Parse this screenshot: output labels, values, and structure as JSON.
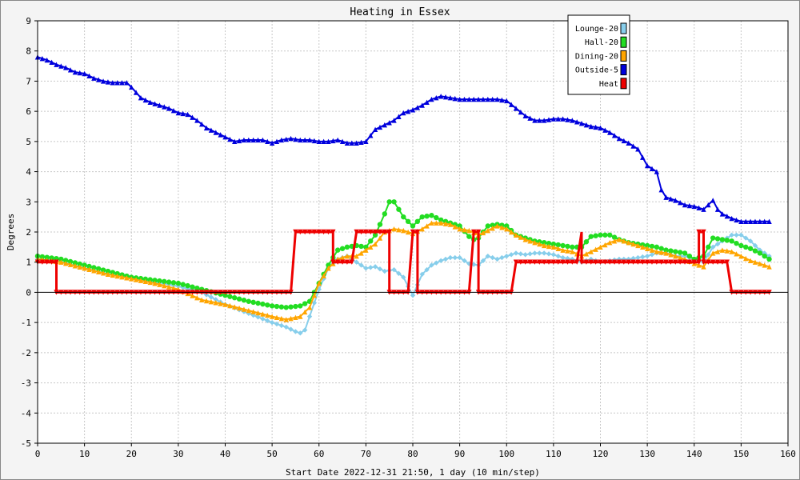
{
  "chart_data": {
    "type": "line",
    "title": "Heating in Essex",
    "xlabel": "Start Date 2022-12-31 21:50, 1 day (10 min/step)",
    "ylabel": "Degrees",
    "xlim": [
      0,
      160
    ],
    "ylim": [
      -5,
      9
    ],
    "x_ticks": [
      0,
      10,
      20,
      30,
      40,
      50,
      60,
      70,
      80,
      90,
      100,
      110,
      120,
      130,
      140,
      150,
      160
    ],
    "y_ticks": [
      -5,
      -4,
      -3,
      -2,
      -1,
      0,
      1,
      2,
      3,
      4,
      5,
      6,
      7,
      8,
      9
    ],
    "grid": true,
    "legend_position": "top-right",
    "series": [
      {
        "name": "Lounge-20",
        "color": "#87ceeb",
        "marker": "diamond",
        "points": [
          [
            0,
            1.1
          ],
          [
            5,
            1.0
          ],
          [
            10,
            0.8
          ],
          [
            15,
            0.6
          ],
          [
            20,
            0.5
          ],
          [
            25,
            0.35
          ],
          [
            30,
            0.2
          ],
          [
            35,
            0.0
          ],
          [
            40,
            -0.4
          ],
          [
            45,
            -0.7
          ],
          [
            50,
            -1.0
          ],
          [
            53,
            -1.15
          ],
          [
            55,
            -1.3
          ],
          [
            56,
            -1.35
          ],
          [
            57,
            -1.25
          ],
          [
            58,
            -0.8
          ],
          [
            60,
            0.1
          ],
          [
            62,
            0.8
          ],
          [
            64,
            1.1
          ],
          [
            66,
            1.2
          ],
          [
            68,
            1.0
          ],
          [
            70,
            0.8
          ],
          [
            72,
            0.85
          ],
          [
            74,
            0.7
          ],
          [
            76,
            0.75
          ],
          [
            78,
            0.5
          ],
          [
            80,
            -0.1
          ],
          [
            82,
            0.6
          ],
          [
            84,
            0.9
          ],
          [
            86,
            1.05
          ],
          [
            88,
            1.15
          ],
          [
            90,
            1.15
          ],
          [
            92,
            0.95
          ],
          [
            94,
            0.9
          ],
          [
            96,
            1.2
          ],
          [
            98,
            1.1
          ],
          [
            100,
            1.2
          ],
          [
            102,
            1.3
          ],
          [
            104,
            1.25
          ],
          [
            106,
            1.3
          ],
          [
            108,
            1.3
          ],
          [
            110,
            1.25
          ],
          [
            112,
            1.15
          ],
          [
            114,
            1.1
          ],
          [
            116,
            1.0
          ],
          [
            118,
            1.1
          ],
          [
            120,
            1.0
          ],
          [
            122,
            1.05
          ],
          [
            124,
            1.1
          ],
          [
            126,
            1.1
          ],
          [
            128,
            1.15
          ],
          [
            130,
            1.2
          ],
          [
            132,
            1.3
          ],
          [
            134,
            1.3
          ],
          [
            136,
            1.2
          ],
          [
            138,
            1.2
          ],
          [
            140,
            1.1
          ],
          [
            142,
            1.0
          ],
          [
            144,
            1.5
          ],
          [
            146,
            1.7
          ],
          [
            148,
            1.9
          ],
          [
            150,
            1.9
          ],
          [
            152,
            1.7
          ],
          [
            154,
            1.4
          ],
          [
            156,
            1.2
          ]
        ]
      },
      {
        "name": "Hall-20",
        "color": "#22dd22",
        "marker": "circle",
        "points": [
          [
            0,
            1.2
          ],
          [
            5,
            1.1
          ],
          [
            10,
            0.9
          ],
          [
            15,
            0.7
          ],
          [
            20,
            0.5
          ],
          [
            25,
            0.4
          ],
          [
            30,
            0.3
          ],
          [
            35,
            0.1
          ],
          [
            40,
            -0.1
          ],
          [
            45,
            -0.3
          ],
          [
            50,
            -0.45
          ],
          [
            53,
            -0.5
          ],
          [
            56,
            -0.45
          ],
          [
            58,
            -0.3
          ],
          [
            60,
            0.3
          ],
          [
            62,
            0.9
          ],
          [
            64,
            1.4
          ],
          [
            66,
            1.5
          ],
          [
            68,
            1.55
          ],
          [
            70,
            1.5
          ],
          [
            72,
            1.9
          ],
          [
            74,
            2.6
          ],
          [
            75,
            3.0
          ],
          [
            76,
            3.0
          ],
          [
            78,
            2.5
          ],
          [
            80,
            2.2
          ],
          [
            82,
            2.5
          ],
          [
            84,
            2.55
          ],
          [
            86,
            2.4
          ],
          [
            88,
            2.3
          ],
          [
            90,
            2.2
          ],
          [
            92,
            1.85
          ],
          [
            93,
            1.75
          ],
          [
            94,
            1.8
          ],
          [
            96,
            2.2
          ],
          [
            98,
            2.25
          ],
          [
            100,
            2.2
          ],
          [
            102,
            1.9
          ],
          [
            104,
            1.8
          ],
          [
            106,
            1.7
          ],
          [
            108,
            1.65
          ],
          [
            110,
            1.6
          ],
          [
            112,
            1.55
          ],
          [
            114,
            1.5
          ],
          [
            116,
            1.5
          ],
          [
            118,
            1.85
          ],
          [
            120,
            1.9
          ],
          [
            122,
            1.9
          ],
          [
            124,
            1.75
          ],
          [
            126,
            1.65
          ],
          [
            128,
            1.6
          ],
          [
            130,
            1.55
          ],
          [
            132,
            1.5
          ],
          [
            134,
            1.4
          ],
          [
            136,
            1.35
          ],
          [
            138,
            1.3
          ],
          [
            140,
            1.1
          ],
          [
            142,
            1.2
          ],
          [
            144,
            1.8
          ],
          [
            146,
            1.75
          ],
          [
            148,
            1.7
          ],
          [
            150,
            1.55
          ],
          [
            152,
            1.45
          ],
          [
            154,
            1.3
          ],
          [
            156,
            1.1
          ]
        ]
      },
      {
        "name": "Dining-20",
        "color": "#ffa500",
        "marker": "triangle",
        "points": [
          [
            0,
            1.1
          ],
          [
            5,
            1.0
          ],
          [
            10,
            0.8
          ],
          [
            15,
            0.6
          ],
          [
            20,
            0.45
          ],
          [
            25,
            0.3
          ],
          [
            30,
            0.1
          ],
          [
            35,
            -0.25
          ],
          [
            40,
            -0.4
          ],
          [
            45,
            -0.6
          ],
          [
            50,
            -0.8
          ],
          [
            53,
            -0.9
          ],
          [
            56,
            -0.8
          ],
          [
            58,
            -0.5
          ],
          [
            60,
            0.3
          ],
          [
            62,
            0.8
          ],
          [
            64,
            1.1
          ],
          [
            66,
            1.2
          ],
          [
            68,
            1.2
          ],
          [
            70,
            1.4
          ],
          [
            72,
            1.6
          ],
          [
            74,
            2.0
          ],
          [
            76,
            2.1
          ],
          [
            78,
            2.05
          ],
          [
            80,
            1.95
          ],
          [
            82,
            2.1
          ],
          [
            84,
            2.3
          ],
          [
            86,
            2.3
          ],
          [
            88,
            2.25
          ],
          [
            90,
            2.1
          ],
          [
            92,
            2.05
          ],
          [
            94,
            1.9
          ],
          [
            96,
            2.05
          ],
          [
            98,
            2.2
          ],
          [
            100,
            2.1
          ],
          [
            102,
            1.9
          ],
          [
            104,
            1.75
          ],
          [
            106,
            1.65
          ],
          [
            108,
            1.55
          ],
          [
            110,
            1.5
          ],
          [
            112,
            1.4
          ],
          [
            114,
            1.35
          ],
          [
            116,
            1.2
          ],
          [
            118,
            1.35
          ],
          [
            120,
            1.5
          ],
          [
            122,
            1.65
          ],
          [
            124,
            1.75
          ],
          [
            126,
            1.65
          ],
          [
            128,
            1.55
          ],
          [
            130,
            1.45
          ],
          [
            132,
            1.35
          ],
          [
            134,
            1.3
          ],
          [
            136,
            1.2
          ],
          [
            138,
            1.1
          ],
          [
            140,
            0.95
          ],
          [
            142,
            0.85
          ],
          [
            144,
            1.3
          ],
          [
            146,
            1.4
          ],
          [
            148,
            1.35
          ],
          [
            150,
            1.2
          ],
          [
            152,
            1.05
          ],
          [
            154,
            0.95
          ],
          [
            156,
            0.85
          ]
        ]
      },
      {
        "name": "Outside-5",
        "color": "#0000dd",
        "marker": "triangle",
        "points": [
          [
            0,
            7.8
          ],
          [
            2,
            7.7
          ],
          [
            4,
            7.55
          ],
          [
            6,
            7.45
          ],
          [
            8,
            7.3
          ],
          [
            10,
            7.25
          ],
          [
            12,
            7.1
          ],
          [
            14,
            7.0
          ],
          [
            16,
            6.95
          ],
          [
            18,
            6.95
          ],
          [
            19,
            6.95
          ],
          [
            20,
            6.8
          ],
          [
            22,
            6.45
          ],
          [
            24,
            6.3
          ],
          [
            26,
            6.2
          ],
          [
            28,
            6.1
          ],
          [
            30,
            5.95
          ],
          [
            32,
            5.9
          ],
          [
            34,
            5.7
          ],
          [
            36,
            5.45
          ],
          [
            38,
            5.3
          ],
          [
            40,
            5.15
          ],
          [
            42,
            5.0
          ],
          [
            44,
            5.05
          ],
          [
            46,
            5.05
          ],
          [
            48,
            5.05
          ],
          [
            50,
            4.95
          ],
          [
            52,
            5.05
          ],
          [
            54,
            5.1
          ],
          [
            56,
            5.05
          ],
          [
            58,
            5.05
          ],
          [
            60,
            5.0
          ],
          [
            62,
            5.0
          ],
          [
            64,
            5.05
          ],
          [
            66,
            4.95
          ],
          [
            68,
            4.95
          ],
          [
            70,
            5.0
          ],
          [
            72,
            5.4
          ],
          [
            74,
            5.55
          ],
          [
            76,
            5.7
          ],
          [
            78,
            5.95
          ],
          [
            80,
            6.05
          ],
          [
            82,
            6.2
          ],
          [
            84,
            6.4
          ],
          [
            86,
            6.5
          ],
          [
            88,
            6.45
          ],
          [
            90,
            6.4
          ],
          [
            92,
            6.4
          ],
          [
            94,
            6.4
          ],
          [
            96,
            6.4
          ],
          [
            98,
            6.4
          ],
          [
            100,
            6.35
          ],
          [
            102,
            6.1
          ],
          [
            104,
            5.85
          ],
          [
            106,
            5.7
          ],
          [
            108,
            5.7
          ],
          [
            110,
            5.75
          ],
          [
            112,
            5.75
          ],
          [
            114,
            5.7
          ],
          [
            116,
            5.6
          ],
          [
            118,
            5.5
          ],
          [
            120,
            5.45
          ],
          [
            122,
            5.3
          ],
          [
            124,
            5.1
          ],
          [
            126,
            4.95
          ],
          [
            128,
            4.75
          ],
          [
            130,
            4.2
          ],
          [
            132,
            4.0
          ],
          [
            133,
            3.4
          ],
          [
            134,
            3.15
          ],
          [
            136,
            3.05
          ],
          [
            138,
            2.9
          ],
          [
            140,
            2.85
          ],
          [
            142,
            2.75
          ],
          [
            144,
            3.05
          ],
          [
            145,
            2.75
          ],
          [
            146,
            2.6
          ],
          [
            148,
            2.45
          ],
          [
            150,
            2.35
          ],
          [
            152,
            2.35
          ],
          [
            154,
            2.35
          ],
          [
            156,
            2.35
          ]
        ]
      },
      {
        "name": "Heat",
        "color": "#ee0000",
        "marker": "triangle-down",
        "points": [
          [
            0,
            1
          ],
          [
            4,
            1
          ],
          [
            4,
            0
          ],
          [
            54,
            0
          ],
          [
            55,
            2
          ],
          [
            63,
            2
          ],
          [
            63,
            1
          ],
          [
            67,
            1
          ],
          [
            68,
            2
          ],
          [
            75,
            2
          ],
          [
            75,
            0
          ],
          [
            79,
            0
          ],
          [
            80,
            2
          ],
          [
            81,
            2
          ],
          [
            81,
            0
          ],
          [
            92,
            0
          ],
          [
            93,
            2
          ],
          [
            94,
            2
          ],
          [
            94,
            0
          ],
          [
            101,
            0
          ],
          [
            102,
            1
          ],
          [
            115,
            1
          ],
          [
            116,
            2
          ],
          [
            116,
            1
          ],
          [
            141,
            1
          ],
          [
            141,
            2
          ],
          [
            142,
            2
          ],
          [
            142,
            1
          ],
          [
            147,
            1
          ],
          [
            148,
            0
          ],
          [
            156,
            0
          ]
        ]
      }
    ]
  }
}
